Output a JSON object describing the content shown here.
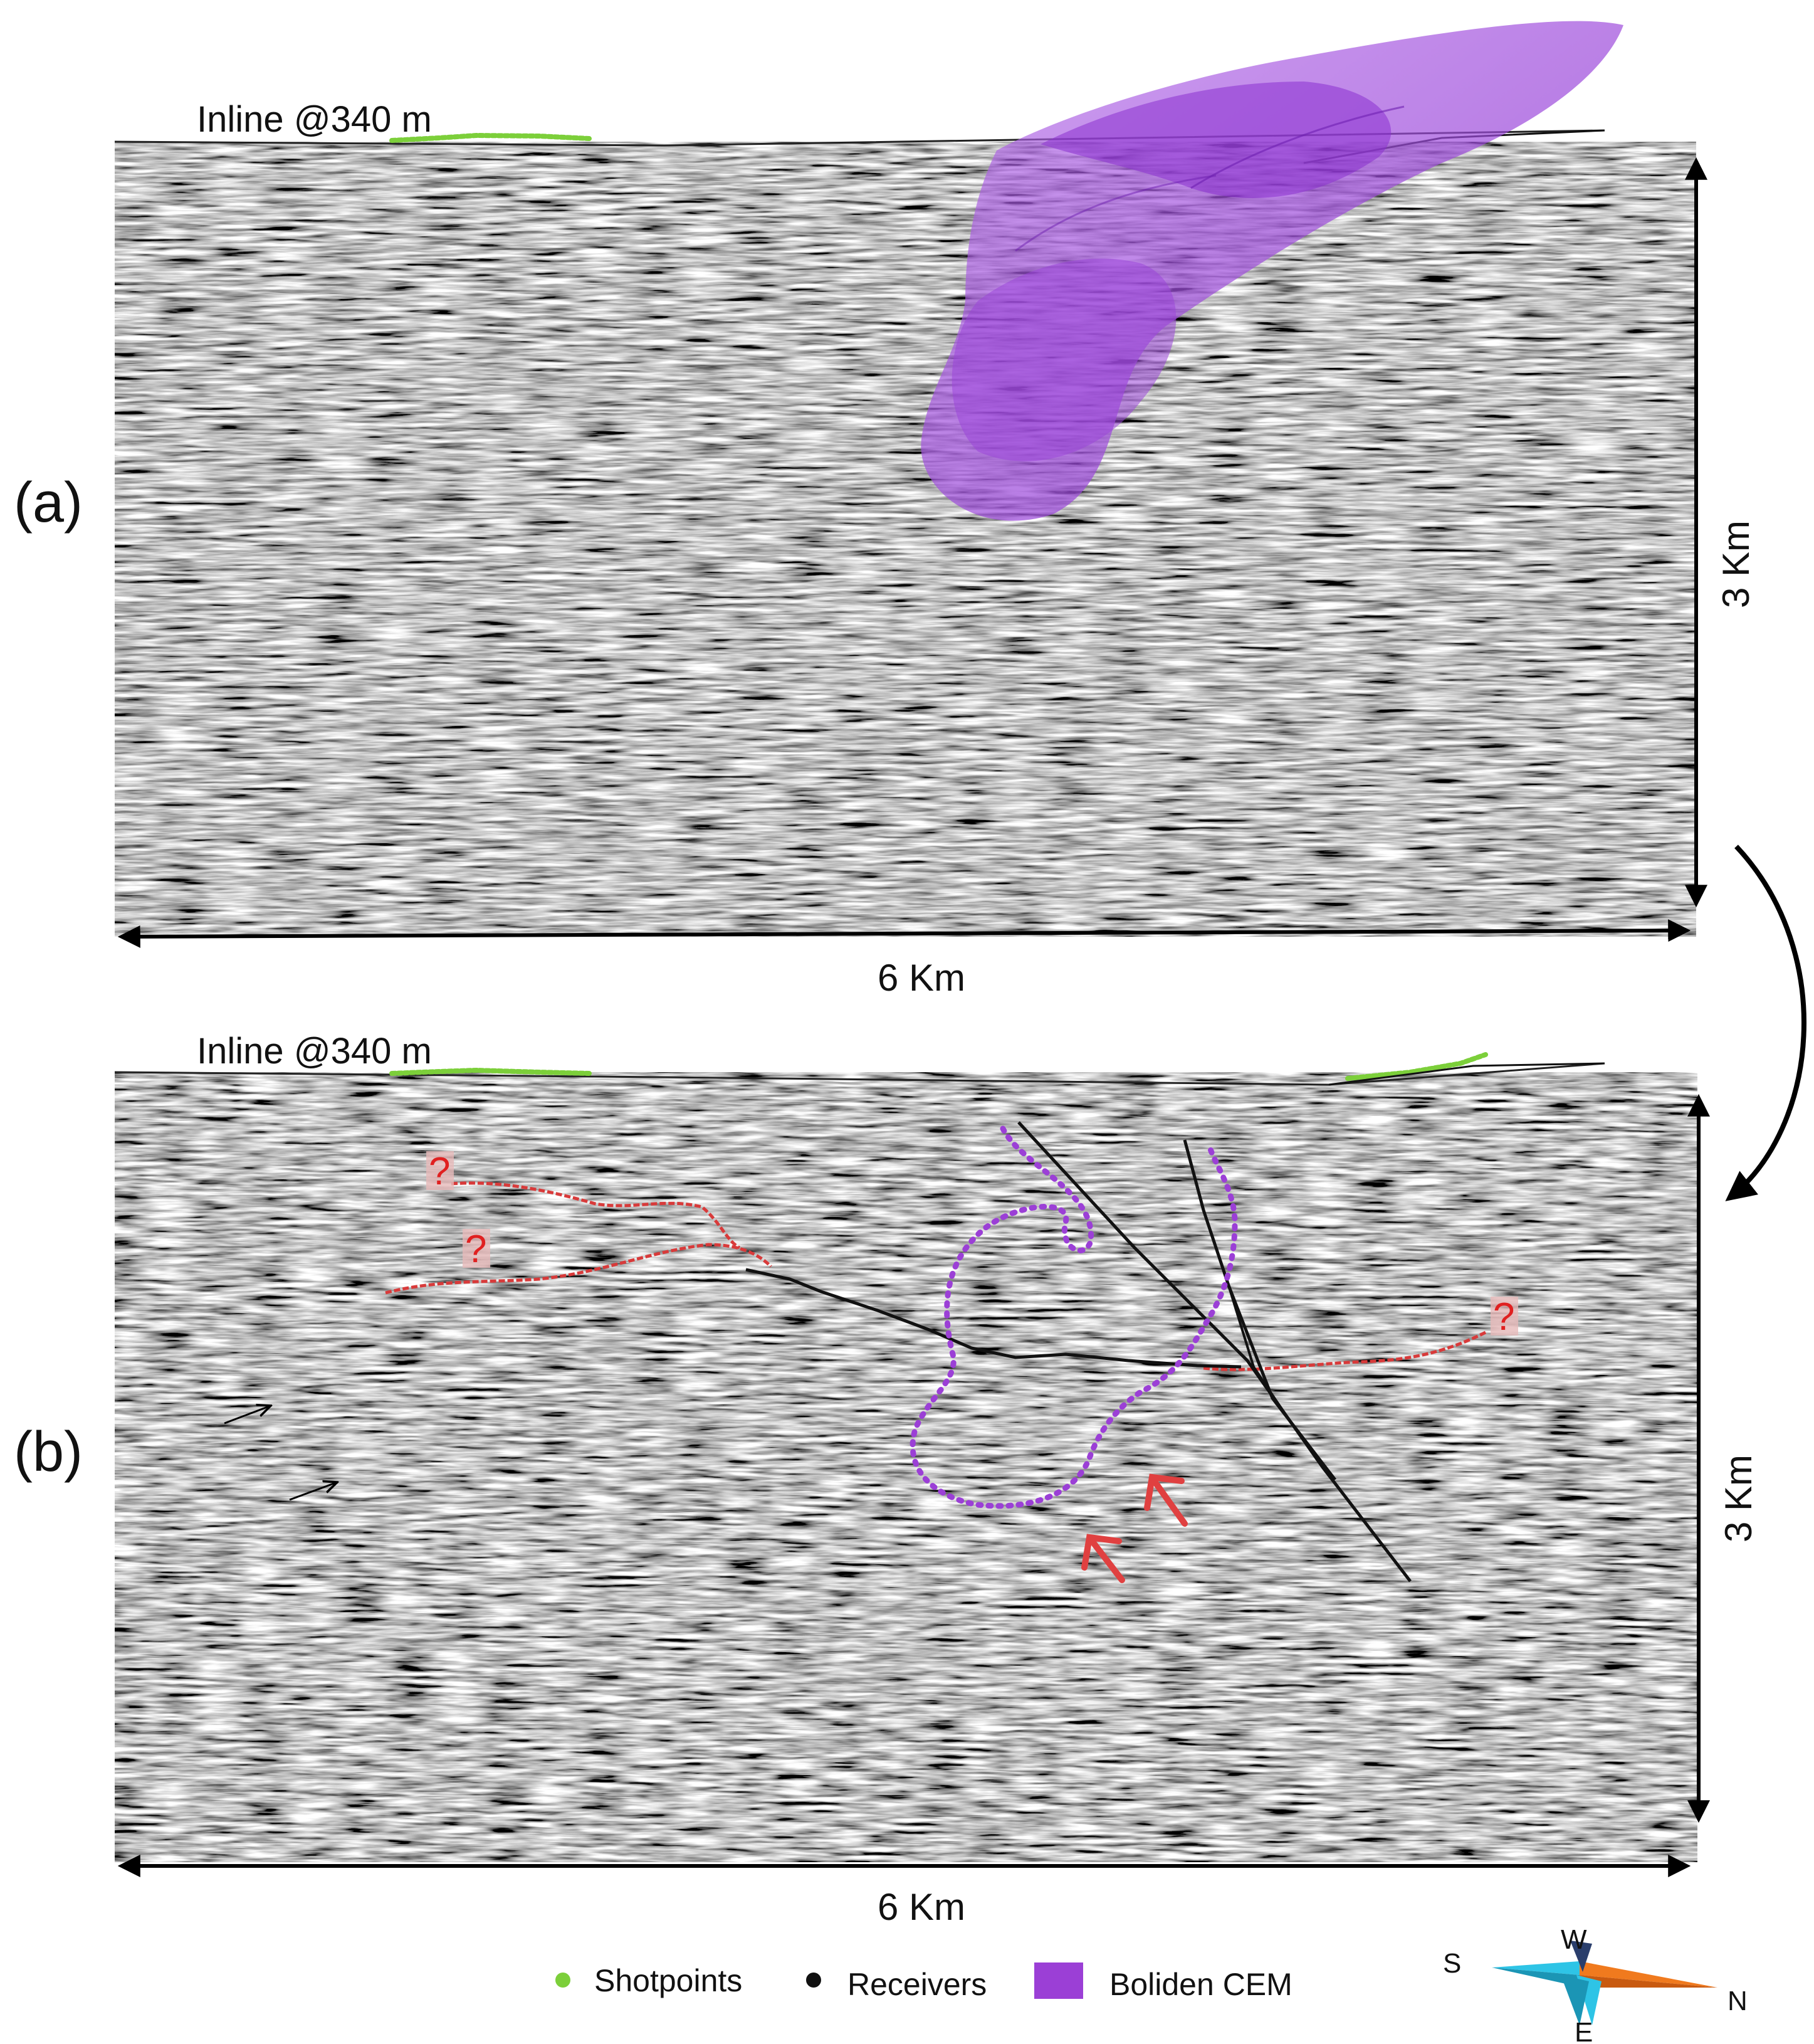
{
  "panels": [
    {
      "id": "a",
      "label": "(a)",
      "inline_label": "Inline @340 m",
      "width_label": "6 Km",
      "depth_label": "3 Km"
    },
    {
      "id": "b",
      "label": "(b)",
      "inline_label": "Inline @340 m",
      "width_label": "6 Km",
      "depth_label": "3 Km",
      "question_marks": [
        "?",
        "?",
        "?"
      ]
    }
  ],
  "legend": {
    "items": [
      {
        "label": "Shotpoints",
        "color": "#7ccf3a",
        "marker": "dot"
      },
      {
        "label": "Receivers",
        "color": "#111111",
        "marker": "dot"
      },
      {
        "label": "Boliden CEM",
        "color": "#9b3fd6",
        "marker": "square"
      }
    ]
  },
  "compass": {
    "S": "S",
    "W": "W",
    "N": "N",
    "E": "E"
  },
  "colors": {
    "cem_purple": "#9b3fd6",
    "interpretation_red": "#d83a3a",
    "fault_black": "#111111",
    "seismic_gray": "#8a8a8a",
    "compass_cyan": "#2ec4e6",
    "compass_orange": "#f07a1e"
  }
}
